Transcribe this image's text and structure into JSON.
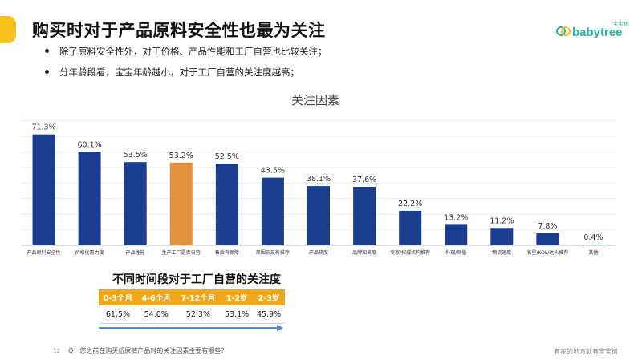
{
  "page": {
    "title": "购买时对于产品原料安全性也最为关注",
    "bullets": [
      "除了原料安全性外，对于价格、产品性能和工厂自营也比较关注；",
      "分年龄段看，宝宝年龄越小，对于工厂自营的关注度越高；"
    ],
    "logo_text": "babytree",
    "logo_cn": "宝宝树",
    "page_number": "12",
    "question": "Q：您之前在购买纸尿裤产品时的关注因素主要有哪些？",
    "slogan": "有家的地方就有宝宝树"
  },
  "colors": {
    "bar": "#1a3d8f",
    "highlight": "#e3913a",
    "accent": "#f6c118",
    "table_header": "#f0a81a",
    "arrow": "#4a8fd8"
  },
  "chart_data": {
    "type": "bar",
    "title": "关注因素",
    "categories": [
      "产品原料安全性",
      "价格优惠力度",
      "产品性能",
      "生产工厂是否自营",
      "售后有保障",
      "周围亲友有推荐",
      "产品热度",
      "品牌知名度",
      "专家/权威机构推荐",
      "外观/颜值",
      "物流速度",
      "名星/KOL/达人推荐",
      "其他"
    ],
    "values": [
      71.3,
      60.1,
      53.5,
      53.2,
      52.5,
      43.5,
      38.1,
      37.6,
      22.2,
      13.2,
      11.2,
      7.8,
      0.4
    ],
    "value_labels": [
      "71.3%",
      "60.1%",
      "53.5%",
      "53.2%",
      "52.5%",
      "43.5%",
      "38.1%",
      "37.6%",
      "22.2%",
      "13.2%",
      "11.2%",
      "7.8%",
      "0.4%"
    ],
    "highlight_index": 3,
    "ylim": [
      0,
      80
    ],
    "grid": true
  },
  "table": {
    "title": "不同时间段对于工厂自营的关注度",
    "headers": [
      "0-3个月",
      "4-6个月",
      "7-12个月",
      "1-2岁",
      "2-3岁"
    ],
    "values": [
      "61.5%",
      "54.0%",
      "52.3%",
      "53.1%",
      "45.9%"
    ]
  }
}
